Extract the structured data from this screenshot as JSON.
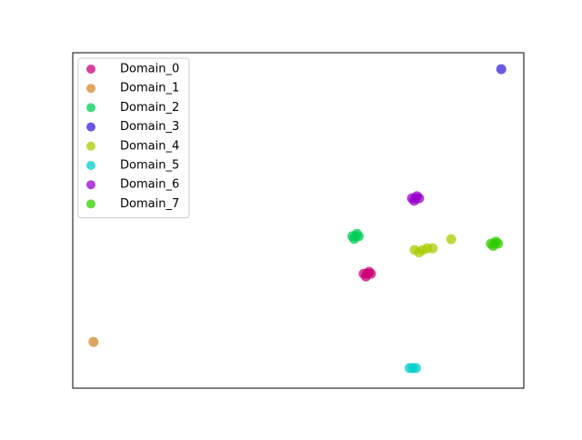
{
  "chart_data": {
    "type": "scatter",
    "xlim": [
      0,
      1
    ],
    "ylim": [
      0,
      1
    ],
    "legend": "upper left",
    "series": [
      {
        "name": "Domain_0",
        "color": "#cc0077",
        "x": [
          0.645,
          0.653,
          0.661,
          0.65,
          0.657
        ],
        "y": [
          0.341,
          0.341,
          0.341,
          0.333,
          0.347
        ]
      },
      {
        "name": "Domain_1",
        "color": "#d4882a",
        "x": [
          0.046
        ],
        "y": [
          0.138
        ]
      },
      {
        "name": "Domain_2",
        "color": "#00cc55",
        "x": [
          0.62,
          0.627,
          0.634,
          0.624,
          0.63
        ],
        "y": [
          0.453,
          0.453,
          0.453,
          0.445,
          0.46
        ]
      },
      {
        "name": "Domain_3",
        "color": "#3a22dd",
        "x": [
          0.95
        ],
        "y": [
          0.951
        ]
      },
      {
        "name": "Domain_4",
        "color": "#aacc00",
        "x": [
          0.758,
          0.768,
          0.776,
          0.786,
          0.798,
          0.839
        ],
        "y": [
          0.412,
          0.405,
          0.412,
          0.417,
          0.417,
          0.444
        ]
      },
      {
        "name": "Domain_5",
        "color": "#00cccc",
        "x": [
          0.747,
          0.754,
          0.761
        ],
        "y": [
          0.06,
          0.06,
          0.06
        ]
      },
      {
        "name": "Domain_6",
        "color": "#9900cc",
        "x": [
          0.752,
          0.76,
          0.768,
          0.757,
          0.763
        ],
        "y": [
          0.566,
          0.566,
          0.566,
          0.559,
          0.572
        ]
      },
      {
        "name": "Domain_7",
        "color": "#33cc00",
        "x": [
          0.927,
          0.935,
          0.943,
          0.932,
          0.938
        ],
        "y": [
          0.431,
          0.431,
          0.431,
          0.424,
          0.437
        ]
      }
    ]
  }
}
